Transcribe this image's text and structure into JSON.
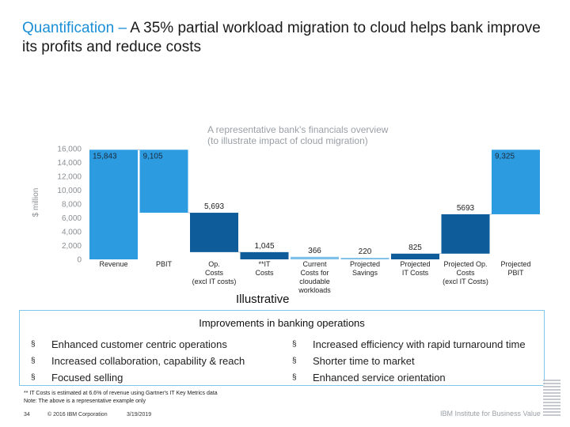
{
  "slide": {
    "title_highlight": "Quantification – ",
    "title_rest": "A 35% partial workload migration to cloud helps bank improve its profits and reduce costs",
    "illustrative": "Illustrative",
    "improvements_title": "Improvements in banking operations",
    "improvements_left": [
      "Enhanced customer centric operations",
      "Increased collaboration, capability & reach",
      "Focused selling"
    ],
    "improvements_right": [
      "Increased efficiency with rapid turnaround time",
      "Shorter time to market",
      "Enhanced service orientation"
    ],
    "bullet_glyph": "§",
    "note_line1": "** IT Costs is estimated at 6.6% of revenue using Gartner's IT Key Metrics data",
    "note_line2": "Note: The above is a representative example only",
    "footer_page": "34",
    "footer_copyright": "© 2016 IBM Corporation",
    "footer_date": "3/19/2019",
    "footer_institute": "IBM Institute for Business Value"
  },
  "chart_data": {
    "type": "bar",
    "subtype": "waterfall",
    "title": "A representative bank's financials overview",
    "subtitle": "(to illustrate impact of cloud migration)",
    "ylabel": "$ million",
    "ylim": [
      0,
      16000
    ],
    "yticks": [
      "0",
      "2,000",
      "4,000",
      "6,000",
      "8,000",
      "10,000",
      "12,000",
      "14,000",
      "16,000"
    ],
    "categories": [
      [
        "Revenue"
      ],
      [
        "PBIT"
      ],
      [
        "Op.",
        "Costs",
        "(excl IT costs)"
      ],
      [
        "**IT",
        "Costs"
      ],
      [
        "Current",
        "Costs for",
        "cloudable",
        "workloads"
      ],
      [
        "Projected",
        "Savings"
      ],
      [
        "Projected",
        "IT Costs"
      ],
      [
        "Projected Op.",
        "Costs",
        "(excl IT Costs)"
      ],
      [
        "Projected",
        "PBIT"
      ]
    ],
    "bars": [
      {
        "label": "15,843",
        "base": 0,
        "top": 15843,
        "kind": "total"
      },
      {
        "label": "9,105",
        "base": 6738,
        "top": 15843,
        "kind": "total"
      },
      {
        "label": "5,693",
        "base": 1045,
        "top": 6738,
        "kind": "cost"
      },
      {
        "label": "1,045",
        "base": 0,
        "top": 1045,
        "kind": "cost"
      },
      {
        "label": "366",
        "base": 0,
        "top": 366,
        "kind": "segment"
      },
      {
        "label": "220",
        "base": 0,
        "top": 220,
        "kind": "segment"
      },
      {
        "label": "825",
        "base": 0,
        "top": 825,
        "kind": "cost"
      },
      {
        "label": "5693",
        "base": 825,
        "top": 6518,
        "kind": "cost"
      },
      {
        "label": "9,325",
        "base": 6518,
        "top": 15843,
        "kind": "total"
      }
    ],
    "colors": {
      "total": "#2d9be0",
      "cost": "#0e5c9a",
      "segment": "#7fc0e8",
      "axis_text": "#8a8f94",
      "title": "#9aa0a6",
      "connector": "#b8bcc2"
    },
    "grid": false
  }
}
